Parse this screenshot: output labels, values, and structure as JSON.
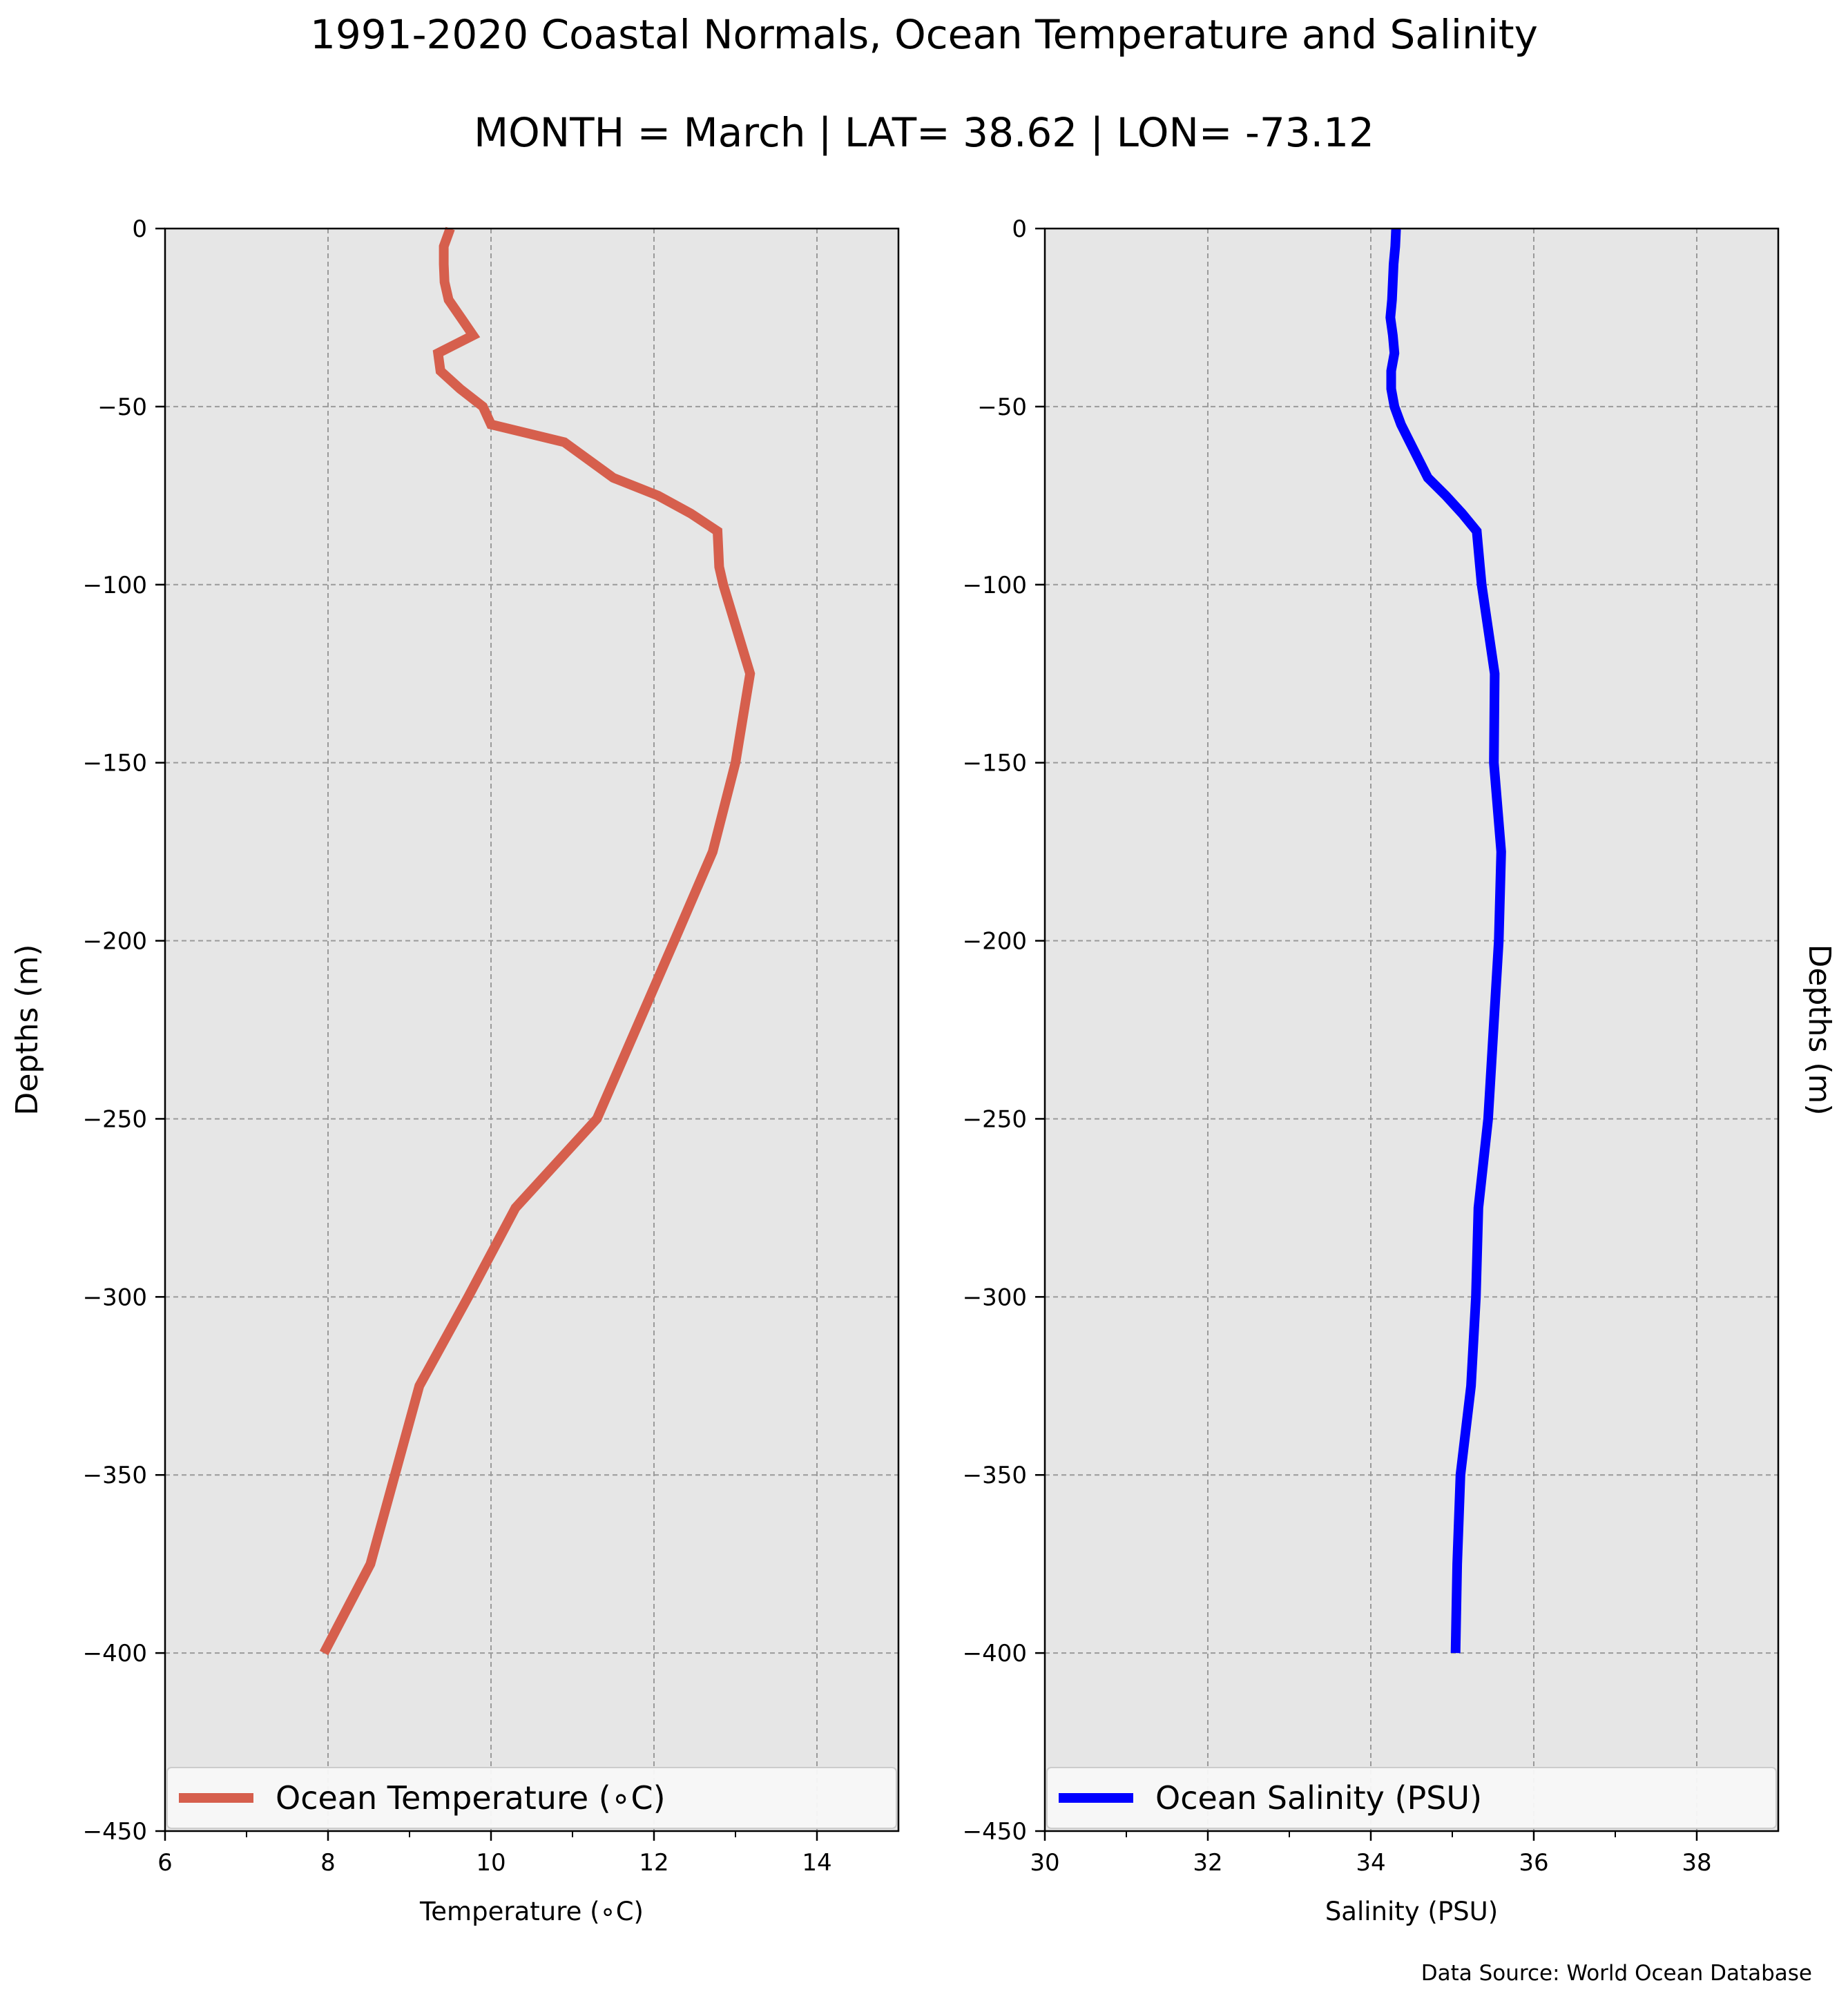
{
  "title": "1991-2020 Coastal Normals, Ocean Temperature and Salinity",
  "subtitle": "MONTH = March | LAT= 38.62 | LON= -73.12",
  "source": "Data Source: World Ocean Database",
  "chart_data": [
    {
      "type": "line",
      "xlabel": "Temperature (∘C)",
      "ylabel": "Depths (m)",
      "ylabel_side": "left",
      "xlim": [
        6,
        15
      ],
      "ylim": [
        -450,
        0
      ],
      "xticks": [
        6,
        8,
        10,
        12,
        14
      ],
      "yticks": [
        0,
        -50,
        -100,
        -150,
        -200,
        -250,
        -300,
        -350,
        -400,
        -450
      ],
      "grid": true,
      "background": "#e6e6e6",
      "legend_position": "lower-center",
      "series": [
        {
          "name": "Ocean Temperature (∘C)",
          "color": "#d65f4d",
          "x": [
            9.5,
            9.42,
            9.42,
            9.43,
            9.48,
            9.63,
            9.78,
            9.35,
            9.38,
            9.62,
            9.9,
            10.0,
            10.9,
            11.5,
            12.05,
            12.45,
            12.78,
            12.8,
            12.85,
            13.18,
            13.0,
            12.72,
            12.25,
            11.3,
            10.3,
            9.72,
            9.12,
            8.52,
            7.95
          ],
          "y": [
            0,
            -5,
            -10,
            -15,
            -20,
            -25,
            -30,
            -35,
            -40,
            -45,
            -50,
            -55,
            -60,
            -70,
            -75,
            -80,
            -85,
            -95,
            -100,
            -125,
            -150,
            -175,
            -200,
            -250,
            -275,
            -300,
            -325,
            -375,
            -400
          ]
        }
      ]
    },
    {
      "type": "line",
      "xlabel": "Salinity (PSU)",
      "ylabel": "Depths (m)",
      "ylabel_side": "right",
      "xlim": [
        30,
        39
      ],
      "ylim": [
        -450,
        0
      ],
      "xticks": [
        30,
        32,
        34,
        36,
        38
      ],
      "yticks": [
        0,
        -50,
        -100,
        -150,
        -200,
        -250,
        -300,
        -350,
        -400,
        -450
      ],
      "grid": true,
      "background": "#e6e6e6",
      "legend_position": "lower-center",
      "series": [
        {
          "name": "Ocean Salinity (PSU)",
          "color": "#0000ff",
          "x": [
            34.31,
            34.3,
            34.28,
            34.26,
            34.24,
            34.27,
            34.29,
            34.25,
            34.25,
            34.29,
            34.37,
            34.48,
            34.7,
            34.92,
            35.12,
            35.3,
            35.34,
            35.36,
            35.52,
            35.51,
            35.6,
            35.57,
            35.44,
            35.32,
            35.29,
            35.23,
            35.1,
            35.06,
            35.04
          ],
          "y": [
            0,
            -5,
            -10,
            -20,
            -25,
            -30,
            -35,
            -40,
            -45,
            -50,
            -55,
            -60,
            -70,
            -75,
            -80,
            -85,
            -95,
            -100,
            -125,
            -150,
            -175,
            -200,
            -250,
            -275,
            -300,
            -325,
            -350,
            -375,
            -400
          ]
        }
      ]
    }
  ]
}
